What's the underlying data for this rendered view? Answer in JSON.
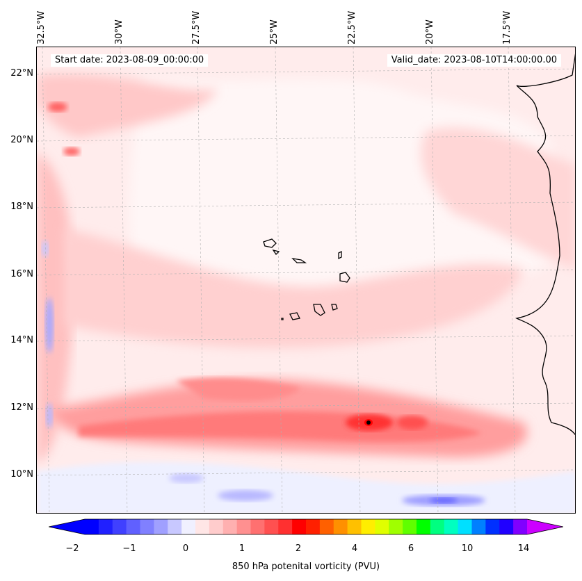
{
  "map": {
    "start_date_label": "Start date: 2023-08-09_00:00:00",
    "valid_date_label": "Valid_date: 2023-08-10T14:00:00.00",
    "longitude_labels": [
      "32.5°W",
      "30°W",
      "27.5°W",
      "25°W",
      "22.5°W",
      "20°W",
      "17.5°W"
    ],
    "latitude_labels": [
      "22°N",
      "20°N",
      "18°N",
      "16°N",
      "14°N",
      "12°N",
      "10°N"
    ],
    "extent": {
      "lon_min": -32.7,
      "lon_max": -15.7,
      "lat_min": 8.9,
      "lat_max": 22.8
    },
    "field": "850 hPa potential vorticity",
    "coastline_color": "#000000",
    "gridlines": true
  },
  "colorbar": {
    "title": "850 hPa potenital vorticity (PVU)",
    "tick_labels": [
      "−2",
      "−1",
      "0",
      "1",
      "2",
      "4",
      "6",
      "10",
      "14"
    ],
    "colors": [
      "#0000ff",
      "#2020ff",
      "#4040ff",
      "#6060ff",
      "#8080ff",
      "#a0a0ff",
      "#c8c8ff",
      "#f0f0ff",
      "#ffe6e6",
      "#ffcccc",
      "#ffb0b0",
      "#ff9090",
      "#ff7070",
      "#ff5050",
      "#ff3030",
      "#ff0000",
      "#ff2000",
      "#ff6000",
      "#ff9000",
      "#ffc000",
      "#ffee00",
      "#e0ff00",
      "#a0ff00",
      "#60ff00",
      "#00ff00",
      "#00ff80",
      "#00ffc0",
      "#00e0ff",
      "#0080ff",
      "#0030ff",
      "#2000ff",
      "#8000ff"
    ],
    "extend_low_color": "#0000ff",
    "extend_high_color": "#cc00ff"
  }
}
